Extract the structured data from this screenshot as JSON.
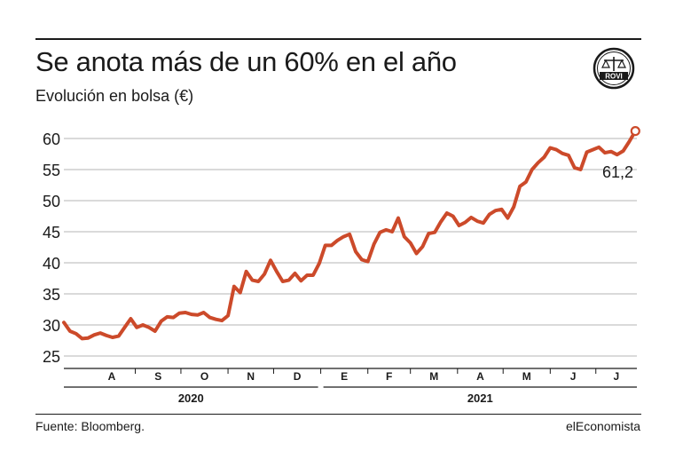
{
  "header": {
    "title": "Se anota más de un 60% en el año",
    "subtitle": "Evolución en bolsa (€)"
  },
  "logo": {
    "text": "ROVI"
  },
  "footer": {
    "source": "Fuente: Bloomberg.",
    "brand": "elEconomista"
  },
  "colors": {
    "line": "#cc4a2a",
    "grid": "#b5b5b5",
    "text": "#1a1a1a",
    "background": "#ffffff"
  },
  "chart_data": {
    "type": "line",
    "title": "Se anota más de un 60% en el año",
    "subtitle": "Evolución en bolsa (€)",
    "xlabel": "",
    "ylabel": "",
    "ylim": [
      25,
      62
    ],
    "yticks": [
      25,
      30,
      35,
      40,
      45,
      50,
      55,
      60
    ],
    "grid": true,
    "months": [
      "A",
      "S",
      "O",
      "N",
      "D",
      "E",
      "F",
      "M",
      "A",
      "M",
      "J",
      "J"
    ],
    "years": [
      {
        "label": "2020",
        "months": 5
      },
      {
        "label": "2021",
        "months": 7
      }
    ],
    "annotation": "61,2",
    "series": [
      {
        "x": [
          "2020-07-16",
          "2020-07-20",
          "2020-07-24",
          "2020-07-28",
          "2020-08-01",
          "2020-08-05",
          "2020-08-09",
          "2020-08-13",
          "2020-08-17",
          "2020-08-21",
          "2020-08-25",
          "2020-08-29",
          "2020-09-02",
          "2020-09-06",
          "2020-09-10",
          "2020-09-14",
          "2020-09-18",
          "2020-09-22",
          "2020-09-26",
          "2020-09-30",
          "2020-10-04",
          "2020-10-08",
          "2020-10-12",
          "2020-10-16",
          "2020-10-20",
          "2020-10-24",
          "2020-10-28",
          "2020-11-01",
          "2020-11-05",
          "2020-11-09",
          "2020-11-13",
          "2020-11-17",
          "2020-11-21",
          "2020-11-25",
          "2020-11-29",
          "2020-12-03",
          "2020-12-07",
          "2020-12-11",
          "2020-12-15",
          "2020-12-19",
          "2020-12-23",
          "2020-12-27",
          "2020-12-31",
          "2021-01-04",
          "2021-01-08",
          "2021-01-12",
          "2021-01-16",
          "2021-01-20",
          "2021-01-24",
          "2021-01-28",
          "2021-02-01",
          "2021-02-05",
          "2021-02-09",
          "2021-02-13",
          "2021-02-17",
          "2021-02-21",
          "2021-02-25",
          "2021-03-01",
          "2021-03-05",
          "2021-03-09",
          "2021-03-13",
          "2021-03-17",
          "2021-03-21",
          "2021-03-25",
          "2021-03-29",
          "2021-04-02",
          "2021-04-06",
          "2021-04-10",
          "2021-04-14",
          "2021-04-18",
          "2021-04-22",
          "2021-04-26",
          "2021-04-30",
          "2021-05-04",
          "2021-05-08",
          "2021-05-12",
          "2021-05-16",
          "2021-05-20",
          "2021-05-24",
          "2021-05-28",
          "2021-06-01",
          "2021-06-05",
          "2021-06-09",
          "2021-06-13",
          "2021-06-17",
          "2021-06-21",
          "2021-06-25",
          "2021-06-29",
          "2021-07-03",
          "2021-07-07",
          "2021-07-11",
          "2021-07-15",
          "2021-07-19",
          "2021-07-23",
          "2021-07-27"
        ],
        "values": [
          30.4,
          29.0,
          28.6,
          27.8,
          27.9,
          28.4,
          28.7,
          28.3,
          28.0,
          28.2,
          29.6,
          31.0,
          29.6,
          30.0,
          29.6,
          29.0,
          30.6,
          31.3,
          31.2,
          31.9,
          32.0,
          31.7,
          31.6,
          32.0,
          31.2,
          30.9,
          30.7,
          31.5,
          36.2,
          35.2,
          38.6,
          37.2,
          37.0,
          38.2,
          40.4,
          38.6,
          37.0,
          37.2,
          38.3,
          37.1,
          38.0,
          38.0,
          39.9,
          42.8,
          42.8,
          43.6,
          44.2,
          44.6,
          41.8,
          40.5,
          40.2,
          43.0,
          44.9,
          45.3,
          45.0,
          47.2,
          44.2,
          43.2,
          41.5,
          42.6,
          44.7,
          44.9,
          46.6,
          48.0,
          47.5,
          46.0,
          46.5,
          47.3,
          46.7,
          46.4,
          47.8,
          48.4,
          48.6,
          47.2,
          49.0,
          52.3,
          53.0,
          55.0,
          56.1,
          57.0,
          58.5,
          58.2,
          57.6,
          57.3,
          55.3,
          55.0,
          57.8,
          58.2,
          58.6,
          57.7,
          57.9,
          57.4,
          58.0,
          59.5,
          61.2
        ]
      }
    ]
  }
}
